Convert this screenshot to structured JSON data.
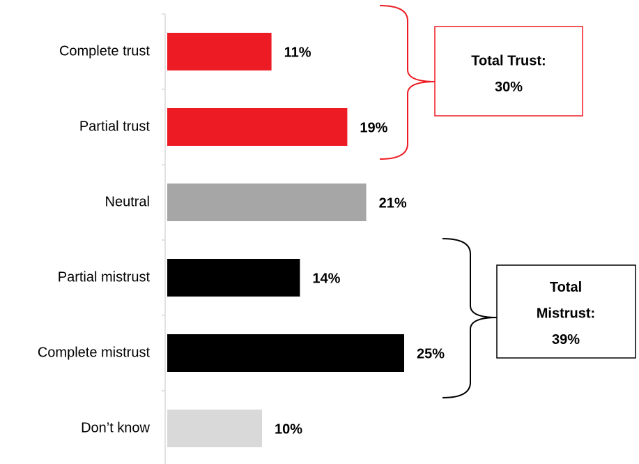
{
  "chart_data": {
    "type": "barh",
    "categories": [
      "Complete trust",
      "Partial trust",
      "Neutral",
      "Partial mistrust",
      "Complete mistrust",
      "Don’t know"
    ],
    "values": [
      11,
      19,
      21,
      14,
      25,
      10
    ],
    "value_labels": [
      "11%",
      "19%",
      "21%",
      "14%",
      "25%",
      "10%"
    ],
    "colors": [
      "#ed1c24",
      "#ed1c24",
      "#a6a6a6",
      "#000000",
      "#000000",
      "#d9d9d9"
    ],
    "xlim": [
      0,
      50
    ],
    "annotations": [
      {
        "lines": [
          "Total Trust:",
          "30%"
        ],
        "color": "#ed1c24"
      },
      {
        "lines": [
          "Total",
          "Mistrust:",
          "39%"
        ],
        "color": "#000000"
      }
    ]
  }
}
